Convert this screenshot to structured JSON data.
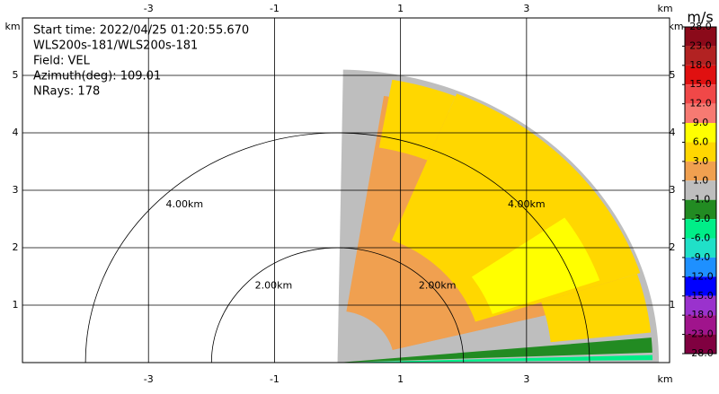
{
  "chart_data": {
    "type": "ppi",
    "info": [
      "Start time: 2022/04/25 01:20:55.670",
      "WLS200s-181/WLS200s-181",
      "Field: VEL",
      "Azimuth(deg): 109.01",
      "NRays: 178"
    ],
    "axis_label": "km",
    "xlim": [
      -5,
      5.27
    ],
    "ylim": [
      0,
      6
    ],
    "xticks": [
      -3,
      -1,
      1,
      3
    ],
    "yticks": [
      1,
      2,
      3,
      4,
      5
    ],
    "grid": true,
    "range_rings": [
      {
        "radius": 2,
        "label": "2.00km"
      },
      {
        "radius": 4,
        "label": "4.00km"
      }
    ],
    "colorbar": {
      "label": "m/s",
      "ticks": [
        {
          "value": 28,
          "label": "28.0"
        },
        {
          "value": 23,
          "label": "23.0"
        },
        {
          "value": 18,
          "label": "18.0"
        },
        {
          "value": 15,
          "label": "15.0"
        },
        {
          "value": 12,
          "label": "12.0"
        },
        {
          "value": 9,
          "label": "9.0"
        },
        {
          "value": 6,
          "label": "6.0"
        },
        {
          "value": 3,
          "label": "3.0"
        },
        {
          "value": 1,
          "label": "1.0"
        },
        {
          "value": -1,
          "label": "-1.0"
        },
        {
          "value": -3,
          "label": "-3.0"
        },
        {
          "value": -6,
          "label": "-6.0"
        },
        {
          "value": -9,
          "label": "-9.0"
        },
        {
          "value": -12,
          "label": "-12.0"
        },
        {
          "value": -15,
          "label": "-15.0"
        },
        {
          "value": -18,
          "label": "-18.0"
        },
        {
          "value": -23,
          "label": "-23.0"
        },
        {
          "value": -28,
          "label": "-28.0"
        }
      ],
      "colors": [
        "#8b0a1a",
        "#b22222",
        "#e01010",
        "#f04848",
        "#f77a72",
        "#ffff00",
        "#ffd700",
        "#f0a050",
        "#bebebe",
        "#228b22",
        "#00ee88",
        "#20e0c8",
        "#1e90ff",
        "#0000ff",
        "#9a32cd",
        "#a0148c",
        "#800040"
      ]
    }
  }
}
